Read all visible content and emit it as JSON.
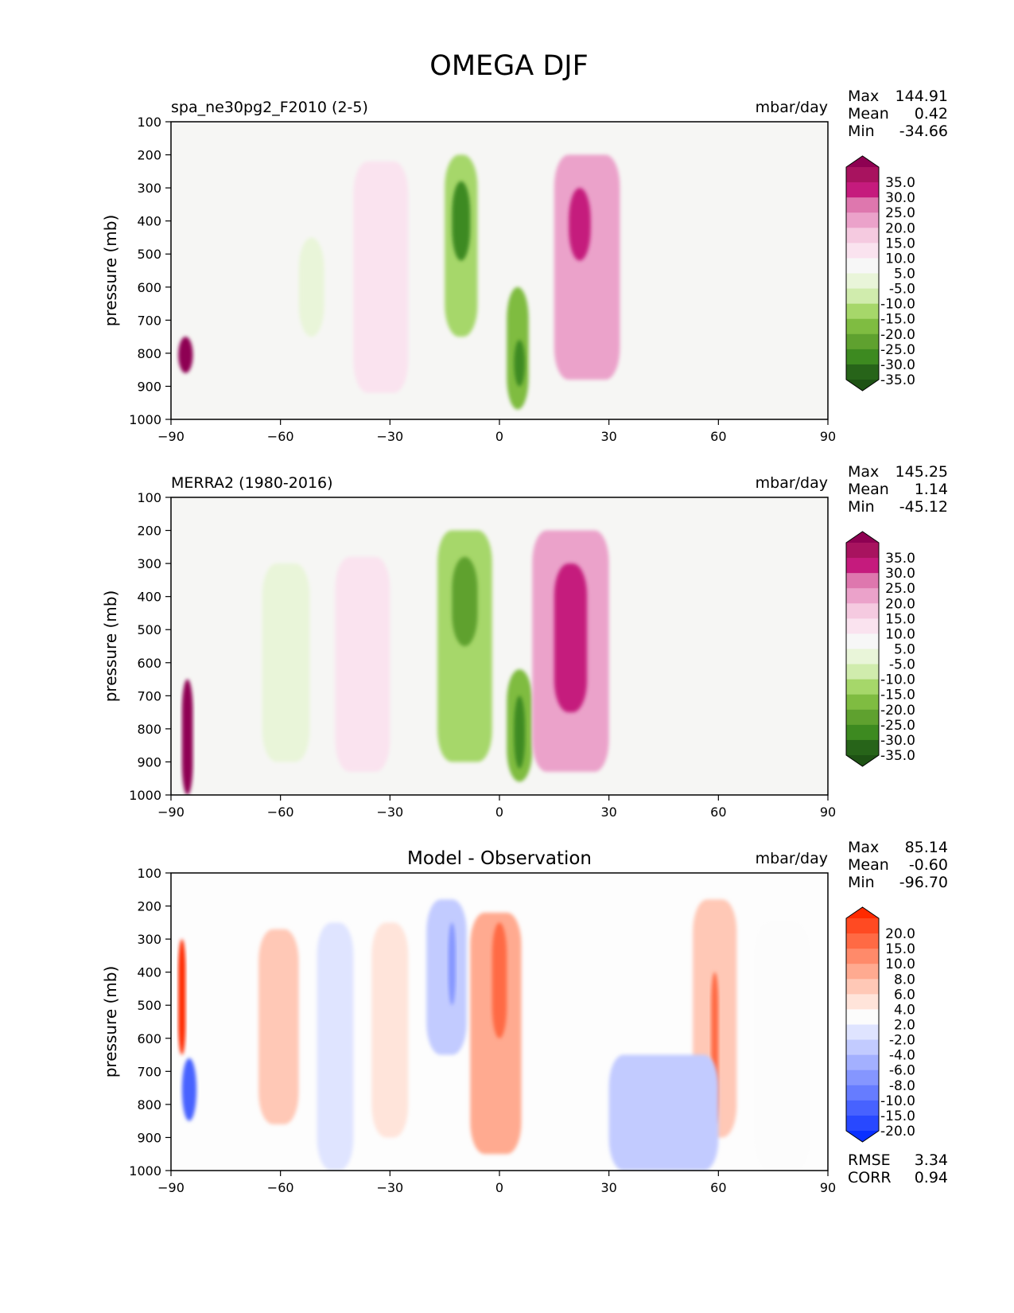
{
  "figure": {
    "title": "OMEGA DJF"
  },
  "colors": {
    "bg_field": "#f6f6f4",
    "diff_bg": "#fdfdfd",
    "frame": "#000000"
  },
  "chart_data": [
    {
      "type": "heatmap",
      "id": "model",
      "title": "spa_ne30pg2_F2010 (2-5)",
      "units": "mbar/day",
      "xlabel": "",
      "ylabel": "pressure (mb)",
      "xlim": [
        -90,
        90
      ],
      "ylim": [
        1000,
        100
      ],
      "xticks": [
        -90,
        -60,
        -30,
        0,
        30,
        60,
        90
      ],
      "xtick_labels": [
        "−90",
        "−60",
        "−30",
        "0",
        "30",
        "60",
        "90"
      ],
      "yticks": [
        100,
        200,
        300,
        400,
        500,
        600,
        700,
        800,
        900,
        1000
      ],
      "stats": [
        {
          "label": "Max",
          "value": "144.91"
        },
        {
          "label": "Mean",
          "value": "0.42"
        },
        {
          "label": "Min",
          "value": "-34.66"
        }
      ],
      "colorbar": {
        "levels": [
          "35.0",
          "30.0",
          "25.0",
          "20.0",
          "15.0",
          "10.0",
          "5.0",
          "-5.0",
          "-10.0",
          "-15.0",
          "-20.0",
          "-25.0",
          "-30.0",
          "-35.0"
        ],
        "colors": [
          "#8e0152",
          "#a8135f",
          "#c51b7d",
          "#de77ae",
          "#eba2ca",
          "#f5cae0",
          "#fae3ef",
          "#f7f7f7",
          "#e9f5d9",
          "#d0ecad",
          "#a6d76a",
          "#7fbc41",
          "#5fa12f",
          "#3d8a20",
          "#276419",
          "#1e5214"
        ]
      },
      "features": [
        {
          "lat": [
            -15,
            -6
          ],
          "p": [
            200,
            750
          ],
          "value": -20
        },
        {
          "lat": [
            -13,
            -8
          ],
          "p": [
            280,
            520
          ],
          "value": -35
        },
        {
          "lat": [
            2,
            8
          ],
          "p": [
            600,
            970
          ],
          "value": -25
        },
        {
          "lat": [
            4,
            7
          ],
          "p": [
            760,
            900
          ],
          "value": -35
        },
        {
          "lat": [
            15,
            33
          ],
          "p": [
            200,
            880
          ],
          "value": 15
        },
        {
          "lat": [
            19,
            25
          ],
          "p": [
            300,
            520
          ],
          "value": 25
        },
        {
          "lat": [
            -40,
            -25
          ],
          "p": [
            220,
            920
          ],
          "value": 5
        },
        {
          "lat": [
            -55,
            -48
          ],
          "p": [
            450,
            750
          ],
          "value": -10
        },
        {
          "lat": [
            -88,
            -84
          ],
          "p": [
            750,
            860
          ],
          "value": 35
        }
      ]
    },
    {
      "type": "heatmap",
      "id": "obs",
      "title": "MERRA2 (1980-2016)",
      "units": "mbar/day",
      "xlabel": "",
      "ylabel": "pressure (mb)",
      "xlim": [
        -90,
        90
      ],
      "ylim": [
        1000,
        100
      ],
      "xticks": [
        -90,
        -60,
        -30,
        0,
        30,
        60,
        90
      ],
      "xtick_labels": [
        "−90",
        "−60",
        "−30",
        "0",
        "30",
        "60",
        "90"
      ],
      "yticks": [
        100,
        200,
        300,
        400,
        500,
        600,
        700,
        800,
        900,
        1000
      ],
      "stats": [
        {
          "label": "Max",
          "value": "145.25"
        },
        {
          "label": "Mean",
          "value": "1.14"
        },
        {
          "label": "Min",
          "value": "-45.12"
        }
      ],
      "colorbar": {
        "levels": [
          "35.0",
          "30.0",
          "25.0",
          "20.0",
          "15.0",
          "10.0",
          "5.0",
          "-5.0",
          "-10.0",
          "-15.0",
          "-20.0",
          "-25.0",
          "-30.0",
          "-35.0"
        ],
        "colors": [
          "#8e0152",
          "#a8135f",
          "#c51b7d",
          "#de77ae",
          "#eba2ca",
          "#f5cae0",
          "#fae3ef",
          "#f7f7f7",
          "#e9f5d9",
          "#d0ecad",
          "#a6d76a",
          "#7fbc41",
          "#5fa12f",
          "#3d8a20",
          "#276419",
          "#1e5214"
        ]
      },
      "features": [
        {
          "lat": [
            -17,
            -2
          ],
          "p": [
            200,
            900
          ],
          "value": -20
        },
        {
          "lat": [
            -13,
            -6
          ],
          "p": [
            280,
            550
          ],
          "value": -30
        },
        {
          "lat": [
            2,
            9
          ],
          "p": [
            620,
            960
          ],
          "value": -25
        },
        {
          "lat": [
            4,
            7
          ],
          "p": [
            700,
            920
          ],
          "value": -35
        },
        {
          "lat": [
            9,
            30
          ],
          "p": [
            200,
            930
          ],
          "value": 15
        },
        {
          "lat": [
            15,
            24
          ],
          "p": [
            300,
            750
          ],
          "value": 25
        },
        {
          "lat": [
            -45,
            -30
          ],
          "p": [
            280,
            930
          ],
          "value": 5
        },
        {
          "lat": [
            -65,
            -52
          ],
          "p": [
            300,
            900
          ],
          "value": -10
        },
        {
          "lat": [
            -87,
            -84
          ],
          "p": [
            650,
            1000
          ],
          "value": 35
        }
      ]
    },
    {
      "type": "heatmap",
      "id": "diff",
      "title": "Model - Observation",
      "units": "mbar/day",
      "xlabel": "",
      "ylabel": "pressure (mb)",
      "xlim": [
        -90,
        90
      ],
      "ylim": [
        1000,
        100
      ],
      "xticks": [
        -90,
        -60,
        -30,
        0,
        30,
        60,
        90
      ],
      "xtick_labels": [
        "−90",
        "−60",
        "−30",
        "0",
        "30",
        "60",
        "90"
      ],
      "yticks": [
        100,
        200,
        300,
        400,
        500,
        600,
        700,
        800,
        900,
        1000
      ],
      "stats": [
        {
          "label": "Max",
          "value": "85.14"
        },
        {
          "label": "Mean",
          "value": "-0.60"
        },
        {
          "label": "Min",
          "value": "-96.70"
        }
      ],
      "extra_stats": [
        {
          "label": "RMSE",
          "value": "3.34"
        },
        {
          "label": "CORR",
          "value": "0.94"
        }
      ],
      "colorbar": {
        "levels": [
          "20.0",
          "15.0",
          "10.0",
          "8.0",
          "6.0",
          "4.0",
          "2.0",
          "-2.0",
          "-4.0",
          "-6.0",
          "-8.0",
          "-10.0",
          "-15.0",
          "-20.0"
        ],
        "colors": [
          "#ff2a00",
          "#ff4a22",
          "#ff6a44",
          "#ff8a6a",
          "#ffaa90",
          "#ffc8b6",
          "#ffe4da",
          "#fcfcfc",
          "#dfe4ff",
          "#c2cbff",
          "#a3b0ff",
          "#8596ff",
          "#667cff",
          "#4762ff",
          "#2848ff",
          "#0a30ff"
        ]
      },
      "features": [
        {
          "lat": [
            -8,
            6
          ],
          "p": [
            220,
            950
          ],
          "value": 6
        },
        {
          "lat": [
            -2,
            2
          ],
          "p": [
            250,
            600
          ],
          "value": 10
        },
        {
          "lat": [
            -20,
            -9
          ],
          "p": [
            180,
            650
          ],
          "value": -6
        },
        {
          "lat": [
            -14,
            -12
          ],
          "p": [
            250,
            500
          ],
          "value": -10
        },
        {
          "lat": [
            -50,
            -40
          ],
          "p": [
            250,
            1000
          ],
          "value": -4
        },
        {
          "lat": [
            -66,
            -55
          ],
          "p": [
            270,
            860
          ],
          "value": 4
        },
        {
          "lat": [
            -35,
            -25
          ],
          "p": [
            250,
            900
          ],
          "value": 2
        },
        {
          "lat": [
            53,
            65
          ],
          "p": [
            180,
            900
          ],
          "value": 4
        },
        {
          "lat": [
            58,
            60
          ],
          "p": [
            400,
            860
          ],
          "value": 10
        },
        {
          "lat": [
            30,
            60
          ],
          "p": [
            650,
            1000
          ],
          "value": -6
        },
        {
          "lat": [
            70,
            85
          ],
          "p": [
            250,
            1000
          ],
          "value": -2
        },
        {
          "lat": [
            -88,
            -86
          ],
          "p": [
            300,
            650
          ],
          "value": 20
        },
        {
          "lat": [
            -87,
            -83
          ],
          "p": [
            660,
            850
          ],
          "value": -20
        }
      ]
    }
  ]
}
